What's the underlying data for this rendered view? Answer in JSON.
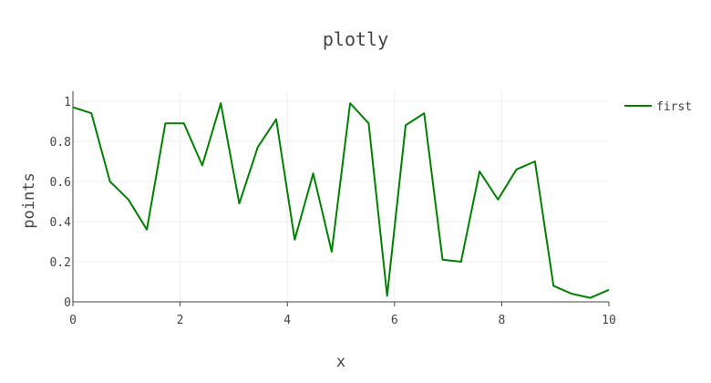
{
  "chart_data": {
    "type": "line",
    "title": "plotly",
    "xlabel": "x",
    "ylabel": "points",
    "xlim": [
      0,
      10
    ],
    "ylim": [
      0,
      1.05
    ],
    "x_ticks": [
      "0",
      "2",
      "4",
      "6",
      "8",
      "10"
    ],
    "y_ticks": [
      "0",
      "0.2",
      "0.4",
      "0.6",
      "0.8",
      "1"
    ],
    "grid": true,
    "legend_position": "top-right",
    "series": [
      {
        "name": "first",
        "color": "#008000",
        "x": [
          0,
          0.345,
          0.69,
          1.034,
          1.379,
          1.724,
          2.069,
          2.414,
          2.759,
          3.103,
          3.448,
          3.793,
          4.138,
          4.483,
          4.828,
          5.172,
          5.517,
          5.862,
          6.207,
          6.552,
          6.897,
          7.241,
          7.586,
          7.931,
          8.276,
          8.621,
          8.966,
          9.31,
          9.655,
          10
        ],
        "y": [
          0.97,
          0.94,
          0.6,
          0.51,
          0.36,
          0.89,
          0.89,
          0.68,
          0.99,
          0.49,
          0.77,
          0.91,
          0.31,
          0.64,
          0.25,
          0.99,
          0.89,
          0.03,
          0.88,
          0.94,
          0.21,
          0.2,
          0.65,
          0.51,
          0.66,
          0.7,
          0.08,
          0.04,
          0.02,
          0.06
        ]
      }
    ]
  }
}
